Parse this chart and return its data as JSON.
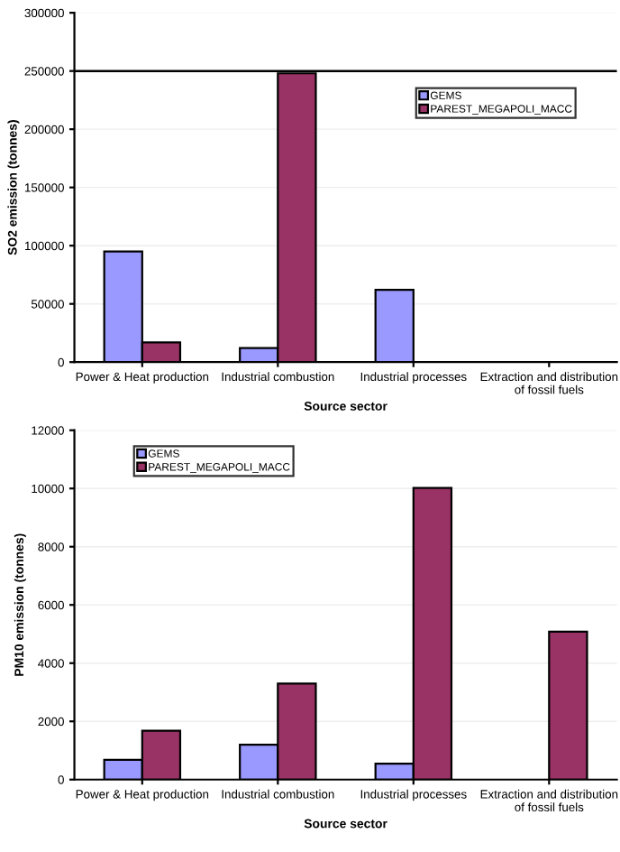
{
  "chart_data": [
    {
      "type": "bar",
      "xlabel": "Source sector",
      "ylabel": "SO2 emission (tonnes)",
      "categories": [
        "Power & Heat production",
        "Industrial combustion",
        "Industrial processes",
        "Extraction and distribution of fossil fuels"
      ],
      "series": [
        {
          "name": "GEMS",
          "color": "#9999ff",
          "values": [
            95000,
            12000,
            62000,
            null
          ]
        },
        {
          "name": "PAREST_MEGAPOLI_MACC",
          "color": "#993366",
          "values": [
            17000,
            248000,
            null,
            null
          ]
        }
      ],
      "ylim": [
        0,
        300000
      ],
      "yticks": [
        0,
        50000,
        100000,
        150000,
        200000,
        250000,
        300000
      ],
      "ref_lines": [
        {
          "axis": "y",
          "value": 250000,
          "color": "#000000"
        }
      ],
      "grid": "y",
      "legend": "top right"
    },
    {
      "type": "bar",
      "xlabel": "Source sector",
      "ylabel": "PM10 emission (tonnes)",
      "categories": [
        "Power & Heat production",
        "Industrial combustion",
        "Industrial processes",
        "Extraction and distribution of fossil fuels"
      ],
      "series": [
        {
          "name": "GEMS",
          "color": "#9999ff",
          "values": [
            680,
            1200,
            550,
            null
          ]
        },
        {
          "name": "PAREST_MEGAPOLI_MACC",
          "color": "#993366",
          "values": [
            1680,
            3300,
            10020,
            5080
          ]
        }
      ],
      "ylim": [
        0,
        12000
      ],
      "yticks": [
        0,
        2000,
        4000,
        6000,
        8000,
        10000,
        12000
      ],
      "grid": "y",
      "legend": "top left"
    }
  ]
}
